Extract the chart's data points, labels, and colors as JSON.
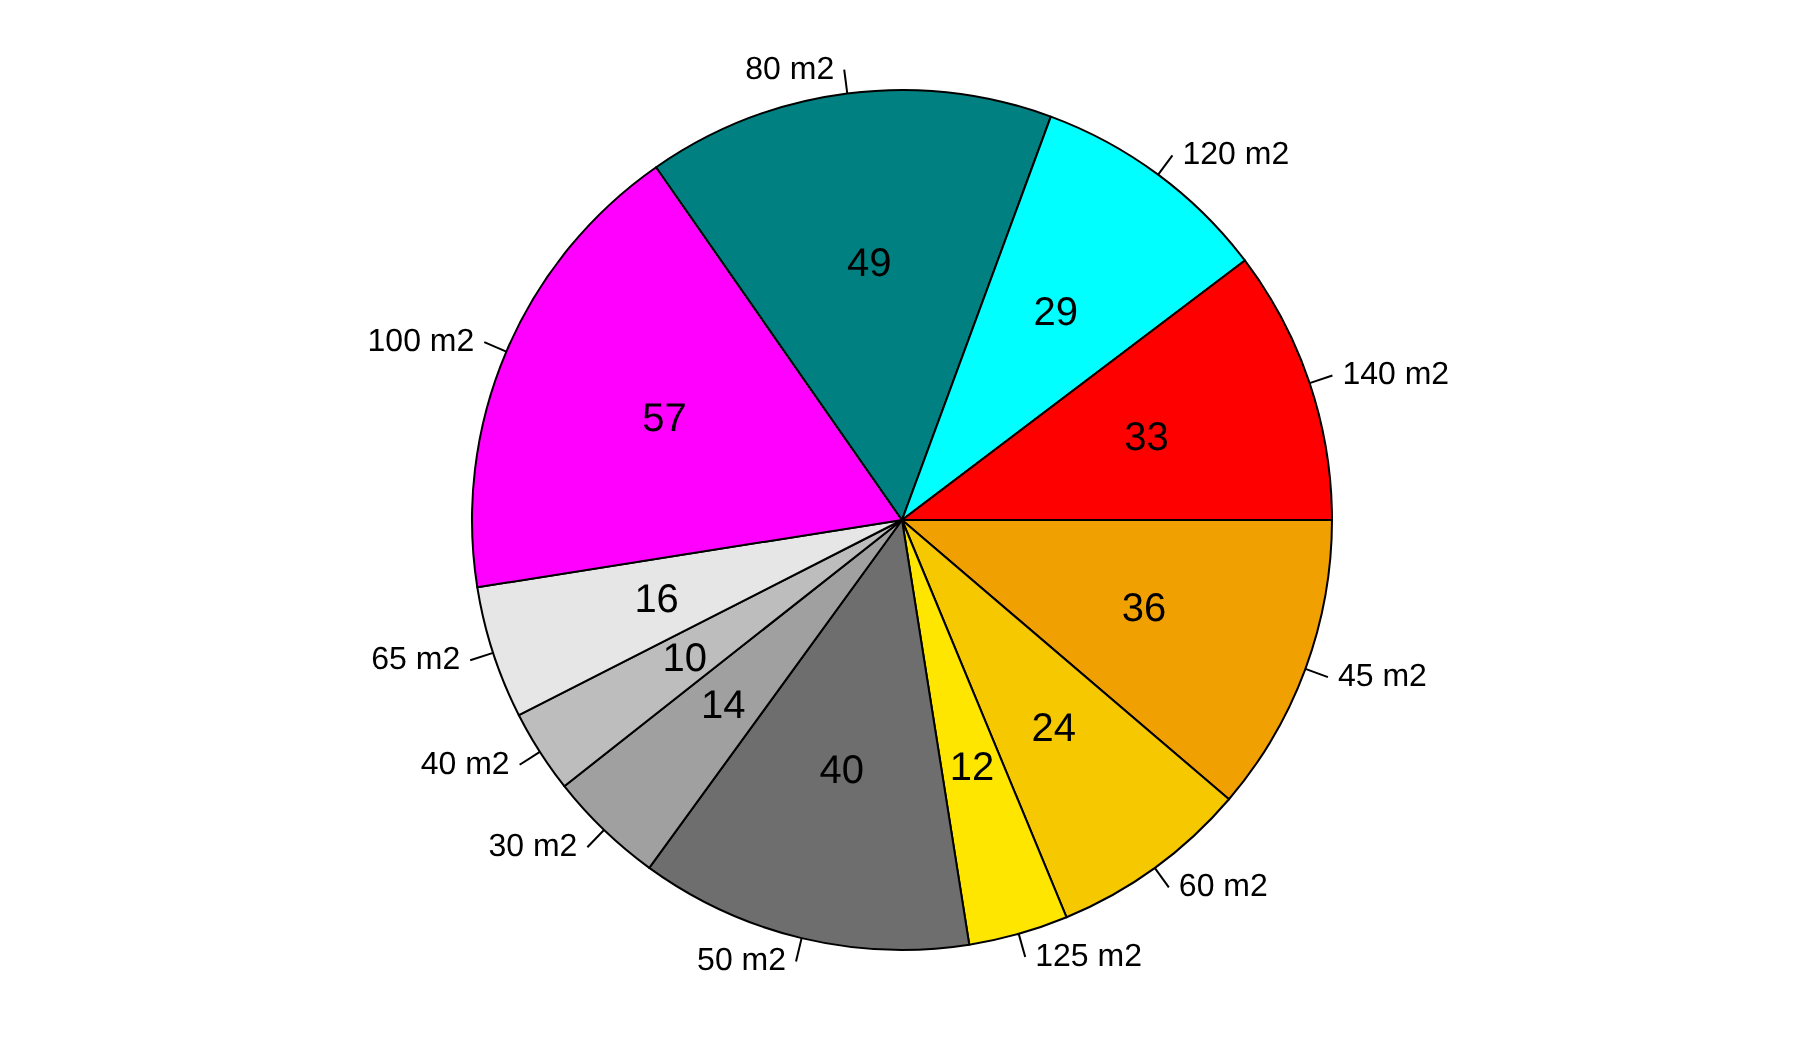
{
  "chart_data": {
    "type": "pie",
    "categories": [
      "45 m2",
      "60 m2",
      "125 m2",
      "50 m2",
      "30 m2",
      "40 m2",
      "65 m2",
      "100 m2",
      "80 m2",
      "120 m2",
      "140 m2"
    ],
    "values": [
      36,
      24,
      12,
      40,
      14,
      10,
      16,
      57,
      49,
      29,
      33
    ],
    "colors": [
      "#f0a000",
      "#f5c800",
      "#ffe600",
      "#6e6e6e",
      "#a0a0a0",
      "#bdbdbd",
      "#e6e6e6",
      "#ff00ff",
      "#008080",
      "#00ffff",
      "#ff0000"
    ],
    "data_labels": true,
    "legend": false
  }
}
